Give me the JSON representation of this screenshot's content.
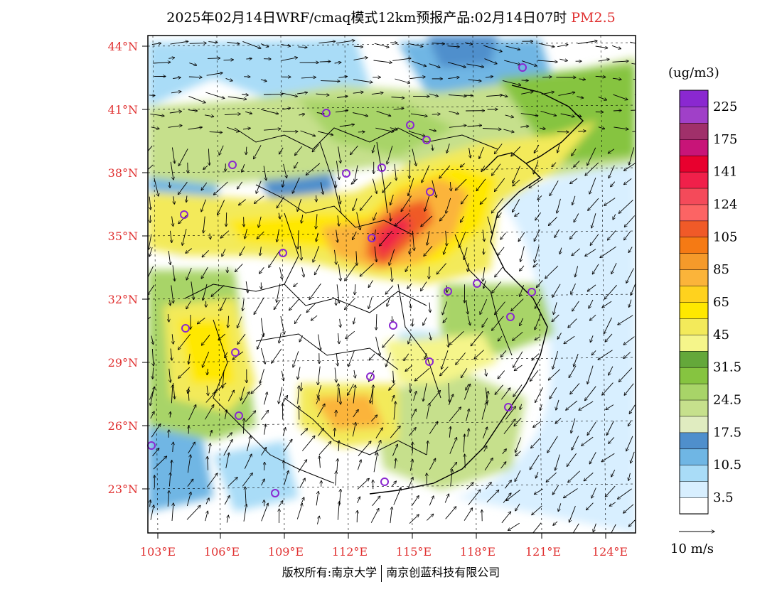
{
  "title": {
    "main": "2025年02月14日WRF/cmaq模式12km预报产品:02月14日07时",
    "pollutant": "PM2.5"
  },
  "map": {
    "lat_labels": [
      "44°N",
      "41°N",
      "38°N",
      "35°N",
      "32°N",
      "29°N",
      "26°N",
      "23°N"
    ],
    "lon_labels": [
      "103°E",
      "106°E",
      "109°E",
      "112°E",
      "115°E",
      "118°E",
      "121°E",
      "124°E"
    ]
  },
  "colorbar": {
    "unit": "(ug/m3)",
    "colors": [
      "#ffffff",
      "#d8efff",
      "#a9dcf7",
      "#6fb6e4",
      "#4f8fcc",
      "#e0ecc0",
      "#c6e08c",
      "#a8d468",
      "#86c440",
      "#64a83a",
      "#f5f58a",
      "#f3ea5a",
      "#ffe800",
      "#ffd21e",
      "#fbb43a",
      "#f59a2a",
      "#f57a14",
      "#f05a28",
      "#fc6464",
      "#f44a5a",
      "#f0204a",
      "#e8002e",
      "#c81478",
      "#a0306a",
      "#a040c8",
      "#8a28d0"
    ],
    "labels": [
      "3.5",
      "10.5",
      "17.5",
      "24.5",
      "31.5",
      "45",
      "65",
      "85",
      "105",
      "124",
      "141",
      "175",
      "225"
    ]
  },
  "wind_legend": {
    "label": "10 m/s"
  },
  "footer": {
    "left": "版权所有:南京大学",
    "right": "南京创蓝科技有限公司"
  }
}
